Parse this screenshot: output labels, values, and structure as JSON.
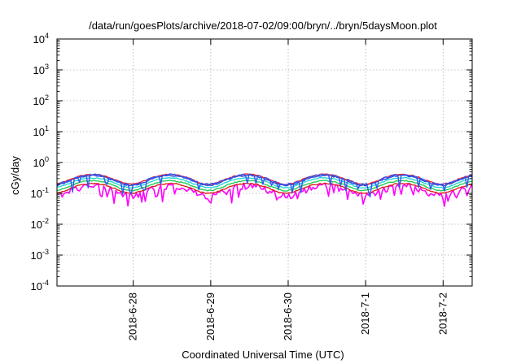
{
  "chart_data": {
    "type": "line",
    "title": "/data/run/goesPlots/archive/2018-07-02/09:00/bryn/../bryn/5daysMoon.plot",
    "xlabel": "Coordinated Universal Time (UTC)",
    "ylabel": "cGy/day",
    "yscale": "log",
    "ylim": [
      0.0001,
      10000
    ],
    "y_ticks": [
      {
        "value": 0.0001,
        "base": "10",
        "exp": "-4"
      },
      {
        "value": 0.001,
        "base": "10",
        "exp": "-3"
      },
      {
        "value": 0.01,
        "base": "10",
        "exp": "-2"
      },
      {
        "value": 0.1,
        "base": "10",
        "exp": "-1"
      },
      {
        "value": 1,
        "base": "10",
        "exp": "0"
      },
      {
        "value": 10,
        "base": "10",
        "exp": "1"
      },
      {
        "value": 100,
        "base": "10",
        "exp": "2"
      },
      {
        "value": 1000,
        "base": "10",
        "exp": "3"
      },
      {
        "value": 10000,
        "base": "10",
        "exp": "4"
      }
    ],
    "xlim": [
      "2018-06-27T00:22",
      "2018-07-02T09:00"
    ],
    "x_ticks": [
      {
        "value": "2018-06-28T00:00",
        "label": "2018-6-28"
      },
      {
        "value": "2018-06-29T00:00",
        "label": "2018-6-29"
      },
      {
        "value": "2018-06-30T00:00",
        "label": "2018-6-30"
      },
      {
        "value": "2018-07-01T00:00",
        "label": "2018-7-1"
      },
      {
        "value": "2018-07-02T00:00",
        "label": "2018-7-2"
      }
    ],
    "grid": true,
    "series": [
      {
        "color": "#ff00ff",
        "base": 0.13,
        "noise": 0.45,
        "dips": true
      },
      {
        "color": "#dd2222",
        "base": 0.155,
        "noise": 0.08,
        "dips": false
      },
      {
        "color": "#22cc55",
        "base": 0.19,
        "noise": 0.08,
        "dips": false
      },
      {
        "color": "#22d8d8",
        "base": 0.235,
        "noise": 0.08,
        "dips": false
      },
      {
        "color": "#2a4bdc",
        "base": 0.28,
        "noise": 0.1,
        "dips": false
      },
      {
        "color": "#ff2020",
        "base": 0.305,
        "noise": 0.08,
        "dips": false
      },
      {
        "color": "#3355ee",
        "base": 0.3,
        "noise": 0.12,
        "dips": true
      }
    ]
  }
}
